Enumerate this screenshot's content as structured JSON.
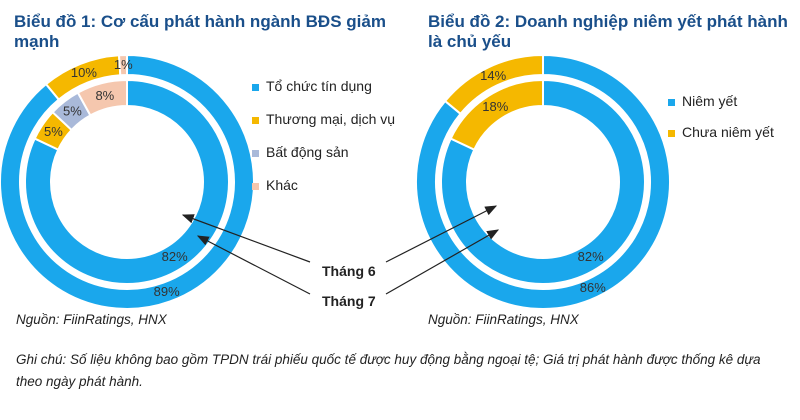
{
  "chart_data": [
    {
      "type": "pie",
      "title": "Biểu đồ 1: Cơ cấu phát hành ngành BĐS giảm mạnh",
      "categories": [
        "Tổ chức tín dụng",
        "Thương mại, dịch vụ",
        "Bất động sản",
        "Khác"
      ],
      "colors": [
        "#1aa7ec",
        "#f5b800",
        "#a9b9d9",
        "#f5c7ae"
      ],
      "series": [
        {
          "name": "Tháng 7",
          "ring": "outer",
          "values": [
            89,
            10,
            0,
            1
          ]
        },
        {
          "name": "Tháng 6",
          "ring": "inner",
          "values": [
            82,
            5,
            5,
            8
          ]
        }
      ],
      "legend_position": "right",
      "source": "Nguồn: FiinRatings, HNX"
    },
    {
      "type": "pie",
      "title": "Biểu đồ 2: Doanh nghiệp niêm yết phát hành là chủ yếu",
      "categories": [
        "Niêm yết",
        "Chưa niêm yết"
      ],
      "colors": [
        "#1aa7ec",
        "#f5b800"
      ],
      "series": [
        {
          "name": "Tháng 7",
          "ring": "outer",
          "values": [
            86,
            14
          ]
        },
        {
          "name": "Tháng 6",
          "ring": "inner",
          "values": [
            82,
            18
          ]
        }
      ],
      "legend_position": "right",
      "source": "Nguồn: FiinRatings, HNX"
    }
  ],
  "annotations": {
    "june": "Tháng 6",
    "july": "Tháng 7"
  },
  "note": "Ghi chú: Số liệu không bao gồm TPDN trái phiếu quốc tế được huy động bằng ngoại tệ; Giá trị phát hành được thống kê dựa theo ngày phát hành."
}
